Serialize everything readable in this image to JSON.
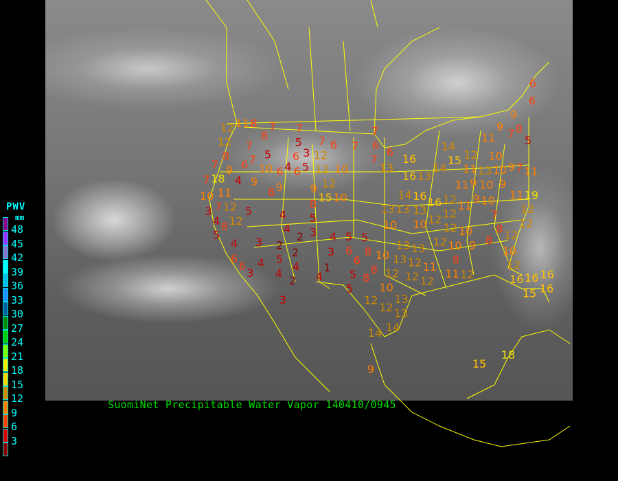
{
  "caption": "SuomiNet Precipitable Water Vapor 140410/0945",
  "legend": {
    "title": "PWV",
    "unit": "mm",
    "ticks": [
      "48",
      "45",
      "42",
      "39",
      "36",
      "33",
      "30",
      "27",
      "24",
      "21",
      "18",
      "15",
      "12",
      "9",
      "6",
      "3"
    ],
    "colors": [
      "#8b008b",
      "#9b30ff",
      "#8a70d0",
      "#00ffff",
      "#00c0e8",
      "#1e90ff",
      "#005f9f",
      "#008b00",
      "#00d000",
      "#80ff00",
      "#f0f000",
      "#ffd700",
      "#d08800",
      "#ff8000",
      "#ff4000",
      "#d80000",
      "#8b0000"
    ]
  },
  "map": {
    "border_color": "#ffff00",
    "stations": [
      {
        "v": "11"
      },
      {
        "v": "8"
      },
      {
        "v": "12"
      },
      {
        "v": "7"
      },
      {
        "v": "7"
      },
      {
        "v": "8"
      },
      {
        "v": "12"
      },
      {
        "v": "8"
      },
      {
        "v": "7"
      },
      {
        "v": "7"
      },
      {
        "v": "5"
      },
      {
        "v": "6"
      },
      {
        "v": "10"
      },
      {
        "v": "5"
      },
      {
        "v": "7"
      },
      {
        "v": "6"
      },
      {
        "v": "7"
      },
      {
        "v": "7"
      },
      {
        "v": "6"
      },
      {
        "v": "6"
      },
      {
        "v": "3"
      },
      {
        "v": "5"
      },
      {
        "v": "4"
      },
      {
        "v": "6"
      },
      {
        "v": "6"
      },
      {
        "v": "12"
      },
      {
        "v": "12"
      },
      {
        "v": "10"
      },
      {
        "v": "12"
      },
      {
        "v": "9"
      },
      {
        "v": "15"
      },
      {
        "v": "10"
      },
      {
        "v": "7"
      },
      {
        "v": "9"
      },
      {
        "v": "7"
      },
      {
        "v": "18"
      },
      {
        "v": "4"
      },
      {
        "v": "9"
      },
      {
        "v": "8"
      },
      {
        "v": "9"
      },
      {
        "v": "10"
      },
      {
        "v": "11"
      },
      {
        "v": "7"
      },
      {
        "v": "3"
      },
      {
        "v": "12"
      },
      {
        "v": "12"
      },
      {
        "v": "4"
      },
      {
        "v": "5"
      },
      {
        "v": "8"
      },
      {
        "v": "5"
      },
      {
        "v": "4"
      },
      {
        "v": "8"
      },
      {
        "v": "5"
      },
      {
        "v": "3"
      },
      {
        "v": "4"
      },
      {
        "v": "2"
      },
      {
        "v": "4"
      },
      {
        "v": "4"
      },
      {
        "v": "3"
      },
      {
        "v": "2"
      },
      {
        "v": "5"
      },
      {
        "v": "2"
      },
      {
        "v": "3"
      },
      {
        "v": "5"
      },
      {
        "v": "5"
      },
      {
        "v": "6"
      },
      {
        "v": "8"
      },
      {
        "v": "6"
      },
      {
        "v": "4"
      },
      {
        "v": "6"
      },
      {
        "v": "3"
      },
      {
        "v": "4"
      },
      {
        "v": "4"
      },
      {
        "v": "1"
      },
      {
        "v": "2"
      },
      {
        "v": "4"
      },
      {
        "v": "5"
      },
      {
        "v": "5"
      },
      {
        "v": "8"
      },
      {
        "v": "6"
      },
      {
        "v": "8"
      },
      {
        "v": "3"
      },
      {
        "v": "6"
      },
      {
        "v": "7"
      },
      {
        "v": "13"
      },
      {
        "v": "16"
      },
      {
        "v": "16"
      },
      {
        "v": "13"
      },
      {
        "v": "14"
      },
      {
        "v": "13"
      },
      {
        "v": "10"
      },
      {
        "v": "13"
      },
      {
        "v": "14"
      },
      {
        "v": "16"
      },
      {
        "v": "16"
      },
      {
        "v": "13"
      },
      {
        "v": "12"
      },
      {
        "v": "12"
      },
      {
        "v": "12"
      },
      {
        "v": "10"
      },
      {
        "v": "12"
      },
      {
        "v": "12"
      },
      {
        "v": "10"
      },
      {
        "v": "11"
      },
      {
        "v": "9"
      },
      {
        "v": "10"
      },
      {
        "v": "9"
      },
      {
        "v": "13"
      },
      {
        "v": "15"
      },
      {
        "v": "14"
      },
      {
        "v": "12"
      },
      {
        "v": "11"
      },
      {
        "v": "11"
      },
      {
        "v": "10"
      },
      {
        "v": "10"
      },
      {
        "v": "10"
      },
      {
        "v": "9"
      },
      {
        "v": "9"
      },
      {
        "v": "11"
      },
      {
        "v": "7"
      },
      {
        "v": "9"
      },
      {
        "v": "11"
      },
      {
        "v": "8"
      },
      {
        "v": "9"
      },
      {
        "v": "7"
      },
      {
        "v": "6"
      },
      {
        "v": "6"
      },
      {
        "v": "5"
      },
      {
        "v": "11"
      },
      {
        "v": "19"
      },
      {
        "v": "12"
      },
      {
        "v": "12"
      },
      {
        "v": "7"
      },
      {
        "v": "8"
      },
      {
        "v": "12"
      },
      {
        "v": "8"
      },
      {
        "v": "9"
      },
      {
        "v": "10"
      },
      {
        "v": "8"
      },
      {
        "v": "10"
      },
      {
        "v": "12"
      },
      {
        "v": "12"
      },
      {
        "v": "11"
      },
      {
        "v": "12"
      },
      {
        "v": "12"
      },
      {
        "v": "11"
      },
      {
        "v": "12"
      },
      {
        "v": "10"
      },
      {
        "v": "13"
      },
      {
        "v": "12"
      },
      {
        "v": "10"
      },
      {
        "v": "13"
      },
      {
        "v": "13"
      },
      {
        "v": "12"
      },
      {
        "v": "12"
      },
      {
        "v": "13"
      },
      {
        "v": "13"
      },
      {
        "v": "14"
      },
      {
        "v": "14"
      },
      {
        "v": "16"
      },
      {
        "v": "16"
      },
      {
        "v": "16"
      },
      {
        "v": "15"
      },
      {
        "v": "16"
      },
      {
        "v": "15"
      },
      {
        "v": "18"
      },
      {
        "v": "9"
      }
    ]
  }
}
